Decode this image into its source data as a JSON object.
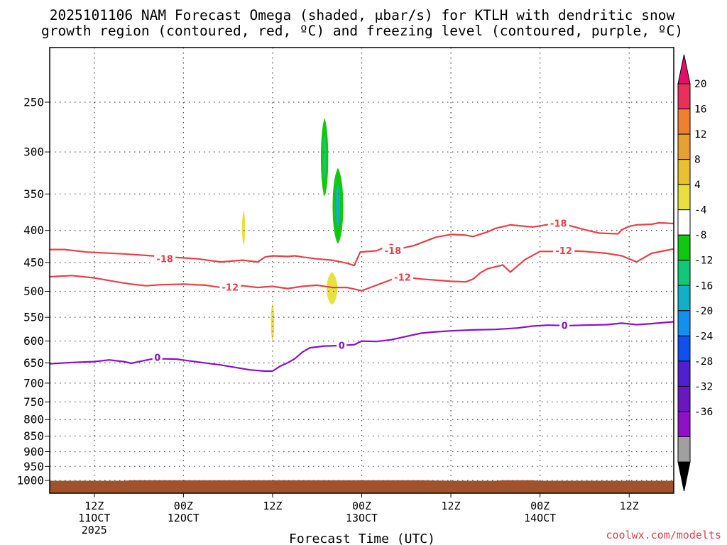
{
  "header": {
    "title_line1": "2025101106 NAM Forecast Omega (shaded, μbar/s) for KTLH with dendritic snow",
    "title_line2": "growth region (contoured, red, ºC) and freezing level (contoured, purple, ºC)"
  },
  "footer": {
    "credit": "coolwx.com/modelts"
  },
  "colors": {
    "dgz": "#e8404a",
    "freezing": "#8a10c8",
    "terrain": "#a0522d",
    "grid": "#555555"
  },
  "chart_data": {
    "type": "time-height",
    "title": "2025101106 NAM Forecast Omega (shaded, μbar/s) for KTLH with dendritic snow growth region (contoured, red, ºC) and freezing level (contoured, purple, ºC)",
    "xlabel": "Forecast Time (UTC)",
    "ylabel": "",
    "xlim": [
      0,
      84
    ],
    "ylim": [
      1000,
      200
    ],
    "y_scale": "log-pressure",
    "grid": true,
    "y_ticks": [
      250,
      300,
      350,
      400,
      450,
      500,
      550,
      600,
      650,
      700,
      750,
      800,
      850,
      900,
      950,
      1000
    ],
    "x_ticks": [
      {
        "t": 6,
        "lines": [
          "12Z",
          "11OCT",
          "2025"
        ]
      },
      {
        "t": 18,
        "lines": [
          "00Z",
          "12OCT"
        ]
      },
      {
        "t": 30,
        "lines": [
          "12Z"
        ]
      },
      {
        "t": 42,
        "lines": [
          "00Z",
          "13OCT"
        ]
      },
      {
        "t": 54,
        "lines": [
          "12Z"
        ]
      },
      {
        "t": 66,
        "lines": [
          "00Z",
          "14OCT"
        ]
      },
      {
        "t": 78,
        "lines": [
          "12Z"
        ]
      }
    ],
    "colorbar": {
      "labels": [
        "20",
        "16",
        "12",
        "8",
        "4",
        "-4",
        "-8",
        "-12",
        "-16",
        "-20",
        "-24",
        "-28",
        "-32",
        "-36"
      ],
      "colors": [
        "#e8305a",
        "#f08030",
        "#e8a030",
        "#e8c030",
        "#e8e040",
        "#ffffff",
        "#10c810",
        "#10c878",
        "#10b0c8",
        "#1090f0",
        "#1050f0",
        "#5020d0",
        "#6818c0",
        "#9010c8",
        "#a0a0a0"
      ],
      "top_arrow": "#e0106a",
      "bottom_arrow": "#000000"
    },
    "contours": [
      {
        "name": "-18",
        "color": "#e8404a",
        "labels": [
          {
            "t": 15.5,
            "p": 444
          },
          {
            "t": 46.2,
            "p": 431
          },
          {
            "t": 68.5,
            "p": 390
          }
        ],
        "points": [
          [
            0,
            429
          ],
          [
            2,
            429
          ],
          [
            5,
            433
          ],
          [
            10,
            436
          ],
          [
            15,
            440
          ],
          [
            20,
            444
          ],
          [
            23,
            449
          ],
          [
            26,
            446
          ],
          [
            28,
            449
          ],
          [
            29,
            441
          ],
          [
            30,
            439
          ],
          [
            32,
            440
          ],
          [
            33,
            439
          ],
          [
            34,
            441
          ],
          [
            36,
            444
          ],
          [
            38,
            446
          ],
          [
            40,
            451
          ],
          [
            41,
            455
          ],
          [
            41.8,
            433
          ],
          [
            44,
            431
          ],
          [
            46,
            421
          ],
          [
            47,
            428
          ],
          [
            49,
            423
          ],
          [
            52,
            410
          ],
          [
            54,
            406
          ],
          [
            56,
            407
          ],
          [
            57,
            409
          ],
          [
            59,
            402
          ],
          [
            60,
            397
          ],
          [
            62,
            392
          ],
          [
            65,
            395
          ],
          [
            68,
            390
          ],
          [
            70,
            393
          ],
          [
            72,
            399
          ],
          [
            74,
            404
          ],
          [
            76.5,
            405
          ],
          [
            77,
            399
          ],
          [
            78,
            394
          ],
          [
            79,
            392
          ],
          [
            81,
            391
          ],
          [
            82,
            389
          ],
          [
            84,
            390
          ]
        ]
      },
      {
        "name": "-12",
        "color": "#e8404a",
        "labels": [
          {
            "t": 24.3,
            "p": 493
          },
          {
            "t": 47.5,
            "p": 475
          },
          {
            "t": 69.2,
            "p": 431
          }
        ],
        "points": [
          [
            0,
            474
          ],
          [
            3,
            472
          ],
          [
            6,
            476
          ],
          [
            9,
            483
          ],
          [
            11,
            487
          ],
          [
            13,
            490
          ],
          [
            15,
            488
          ],
          [
            18,
            487
          ],
          [
            21,
            489
          ],
          [
            23,
            493
          ],
          [
            26,
            490
          ],
          [
            28,
            493
          ],
          [
            30,
            491
          ],
          [
            32,
            495
          ],
          [
            34,
            491
          ],
          [
            36,
            489
          ],
          [
            38,
            493
          ],
          [
            40,
            493
          ],
          [
            42,
            499
          ],
          [
            44,
            489
          ],
          [
            46,
            479
          ],
          [
            48,
            475
          ],
          [
            50,
            478
          ],
          [
            54,
            482
          ],
          [
            56,
            483
          ],
          [
            57,
            478
          ],
          [
            58,
            467
          ],
          [
            59,
            460
          ],
          [
            61,
            454
          ],
          [
            62,
            466
          ],
          [
            64,
            445
          ],
          [
            66,
            432
          ],
          [
            68,
            432
          ],
          [
            70,
            431
          ],
          [
            72,
            432
          ],
          [
            75,
            435
          ],
          [
            77,
            439
          ],
          [
            79,
            449
          ],
          [
            81,
            435
          ],
          [
            84,
            428
          ]
        ]
      },
      {
        "name": "0",
        "color": "#8a10c8",
        "labels": [
          {
            "t": 14.5,
            "p": 638
          },
          {
            "t": 39.3,
            "p": 610
          },
          {
            "t": 69.3,
            "p": 567
          }
        ],
        "points": [
          [
            0,
            652
          ],
          [
            3,
            649
          ],
          [
            6,
            647
          ],
          [
            8,
            643
          ],
          [
            10,
            647
          ],
          [
            11,
            651
          ],
          [
            12,
            647
          ],
          [
            14,
            640
          ],
          [
            17,
            641
          ],
          [
            20,
            648
          ],
          [
            23,
            655
          ],
          [
            25,
            661
          ],
          [
            27,
            667
          ],
          [
            29,
            670
          ],
          [
            30,
            670
          ],
          [
            31,
            658
          ],
          [
            32,
            650
          ],
          [
            33,
            640
          ],
          [
            34,
            625
          ],
          [
            35,
            615
          ],
          [
            37,
            611
          ],
          [
            39,
            610
          ],
          [
            41,
            608
          ],
          [
            42,
            600
          ],
          [
            44,
            601
          ],
          [
            46,
            597
          ],
          [
            48,
            590
          ],
          [
            50,
            583
          ],
          [
            52,
            580
          ],
          [
            54,
            578
          ],
          [
            57,
            576
          ],
          [
            60,
            575
          ],
          [
            63,
            572
          ],
          [
            65,
            568
          ],
          [
            67,
            566
          ],
          [
            70,
            567
          ],
          [
            72,
            566
          ],
          [
            75,
            565
          ],
          [
            77,
            562
          ],
          [
            79,
            565
          ],
          [
            81,
            563
          ],
          [
            84,
            559
          ]
        ]
      }
    ],
    "omega_shading": [
      {
        "color": "#10c810",
        "t": 37.0,
        "p_top": 265,
        "p_bot": 353,
        "halfwidth_h": 0.55,
        "core_color": "#10c878"
      },
      {
        "color": "#10c810",
        "t": 38.8,
        "p_top": 318,
        "p_bot": 420,
        "halfwidth_h": 0.8,
        "core_color": "#10b0c8"
      },
      {
        "color": "#e8e040",
        "t": 26.1,
        "p_top": 372,
        "p_bot": 422,
        "halfwidth_h": 0.15,
        "core_color": "#e8e040"
      },
      {
        "color": "#e8e040",
        "t": 38.0,
        "p_top": 466,
        "p_bot": 525,
        "halfwidth_h": 0.8,
        "core_color": "#e8e040"
      },
      {
        "color": "#e8e040",
        "t": 30.0,
        "p_top": 522,
        "p_bot": 600,
        "halfwidth_h": 0.25,
        "core_color": "#e8e040"
      }
    ]
  }
}
